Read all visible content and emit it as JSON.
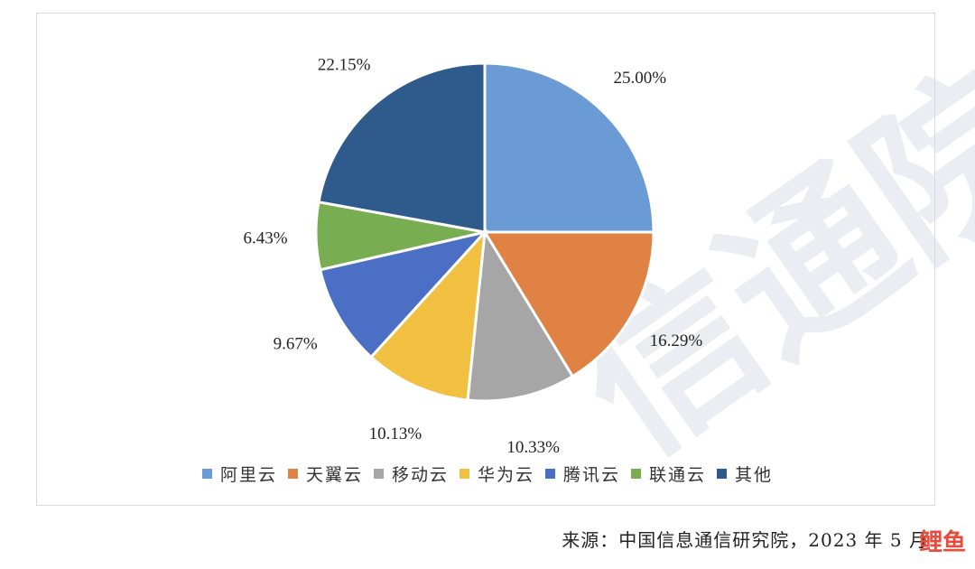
{
  "chart_data": {
    "type": "pie",
    "title": "",
    "categories": [
      "阿里云",
      "天翼云",
      "移动云",
      "华为云",
      "腾讯云",
      "联通云",
      "其他"
    ],
    "values": [
      25.0,
      16.29,
      10.33,
      10.13,
      9.67,
      6.43,
      22.15
    ],
    "labels": [
      "25.00%",
      "16.29%",
      "10.33%",
      "10.13%",
      "9.67%",
      "6.43%",
      "22.15%"
    ],
    "colors": [
      "#6a9bd4",
      "#df8243",
      "#a6a6a6",
      "#f2c040",
      "#4a6fc4",
      "#78ad52",
      "#2f5a8c"
    ],
    "legend_position": "bottom"
  },
  "source_text": "来源：中国信息通信研究院，2023 年 5 月",
  "logo_text": "鲤鱼",
  "watermark_text": "信通院"
}
